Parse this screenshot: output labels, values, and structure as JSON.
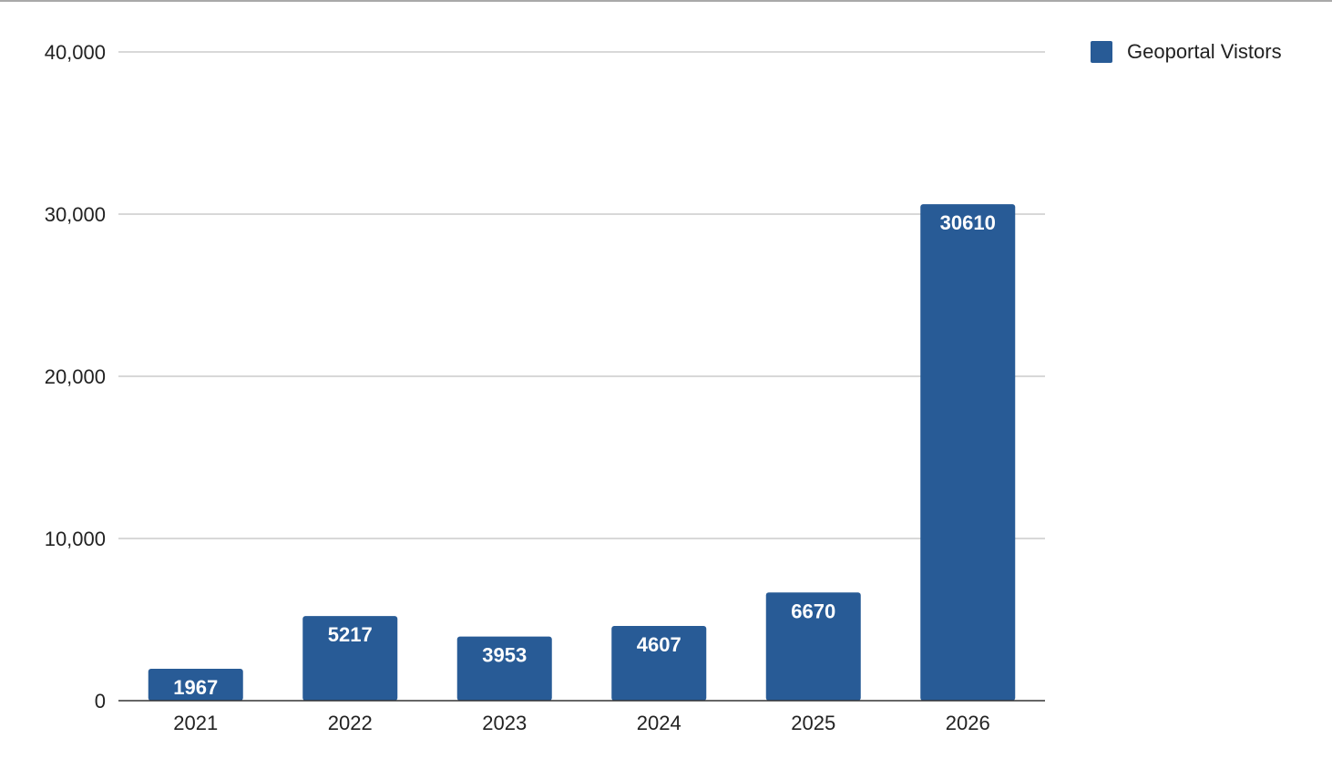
{
  "chart_data": {
    "type": "bar",
    "categories": [
      "2021",
      "2022",
      "2023",
      "2024",
      "2025",
      "2026"
    ],
    "series": [
      {
        "name": "Geoportal Vistors",
        "values": [
          1967,
          5217,
          3953,
          4607,
          6670,
          30610
        ],
        "color": "#285b96"
      }
    ],
    "ylim": [
      0,
      40000
    ],
    "yticks": [
      0,
      10000,
      20000,
      30000,
      40000
    ],
    "ytick_labels": [
      "0",
      "10,000",
      "20,000",
      "30,000",
      "40,000"
    ],
    "grid": true,
    "legend_position": "top-right",
    "data_labels": true,
    "colors": {
      "grid": "#cccccc",
      "axis": "#333333"
    }
  }
}
